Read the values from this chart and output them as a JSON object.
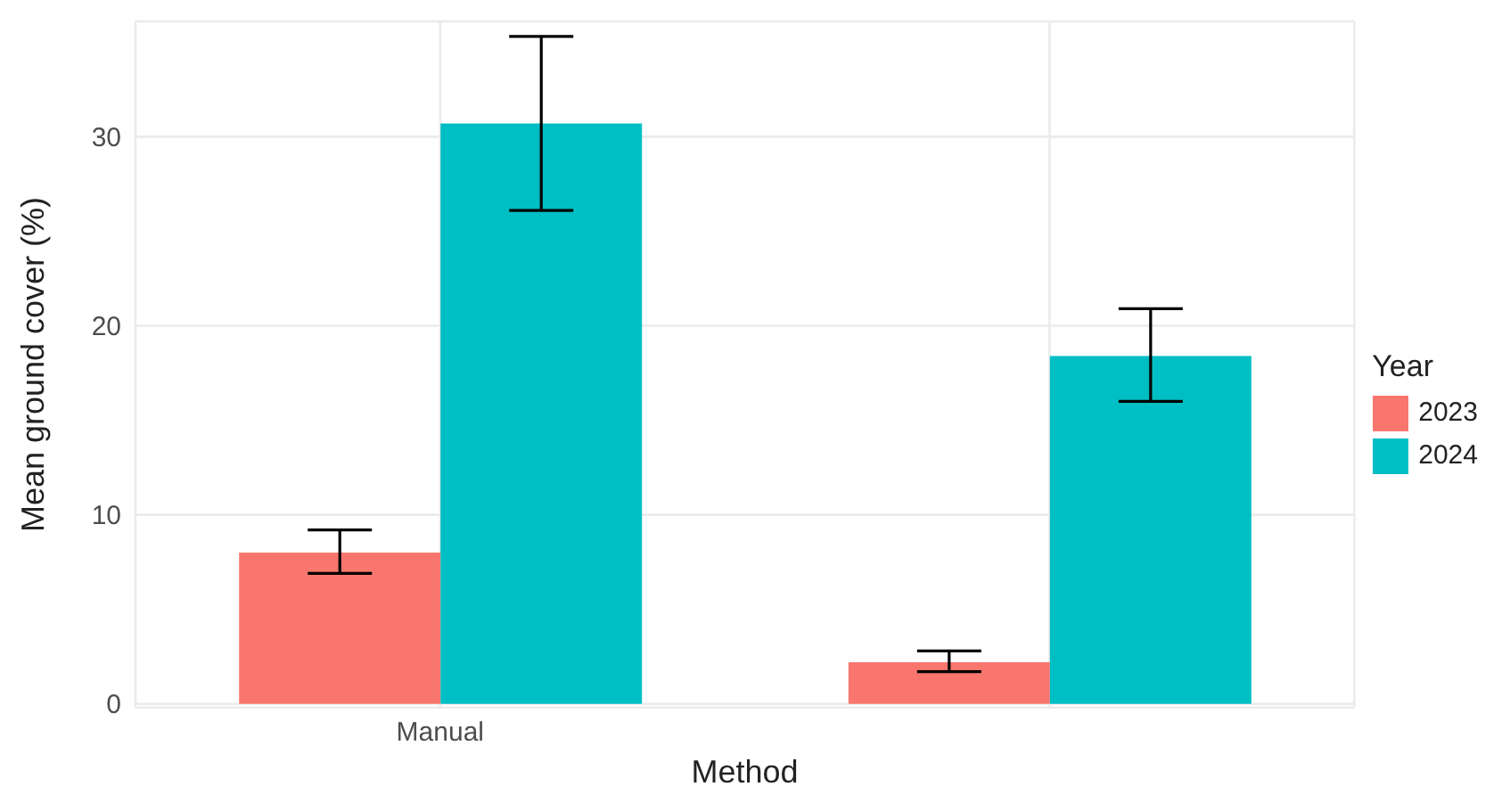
{
  "chart_data": {
    "type": "bar",
    "xlabel": "Method",
    "ylabel": "Mean ground cover (%)",
    "legend_title": "Year",
    "categories": [
      "Manual",
      null
    ],
    "series": [
      {
        "name": "2023",
        "color": "#f8766d",
        "values": [
          8.0,
          2.2
        ],
        "errors": [
          [
            6.9,
            9.2
          ],
          [
            1.7,
            2.8
          ]
        ]
      },
      {
        "name": "2024",
        "color": "#00bfc4",
        "values": [
          30.7,
          18.4
        ],
        "errors": [
          [
            26.1,
            35.3
          ],
          [
            16.0,
            20.9
          ]
        ]
      }
    ],
    "ylim": [
      -0.2,
      36.1
    ],
    "yticks": [
      0,
      10,
      20,
      30
    ],
    "grid": true,
    "legend": "right"
  }
}
